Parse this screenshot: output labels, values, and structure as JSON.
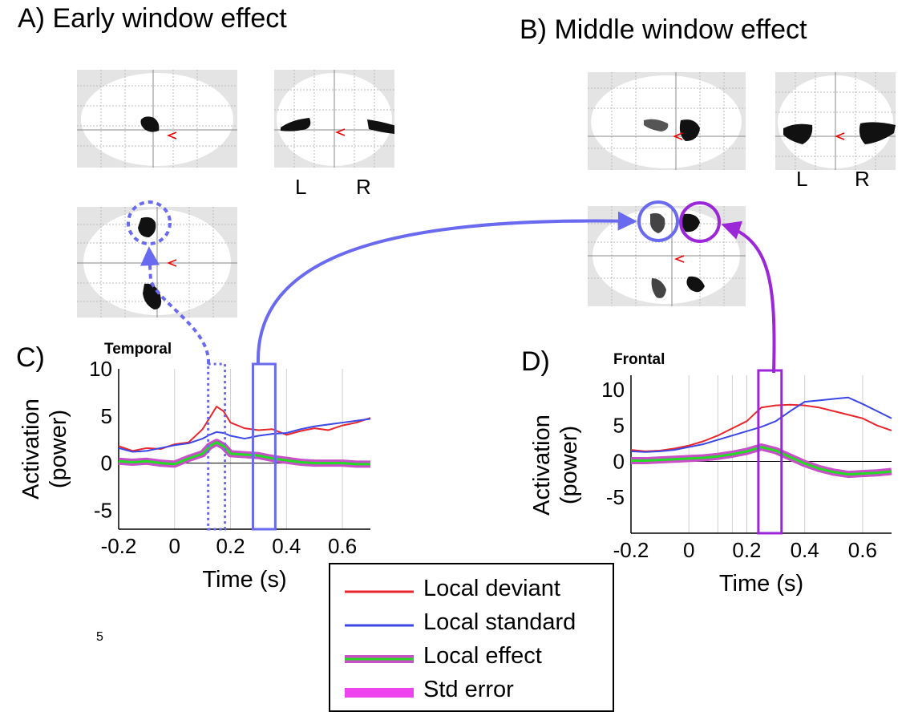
{
  "panel_a": {
    "title": "A)  Early window effect",
    "left_label": "L",
    "right_label": "R"
  },
  "panel_b": {
    "title": "B)   Middle window effect",
    "left_label": "L",
    "right_label": "R"
  },
  "panel_c": {
    "letter": "C)",
    "region": "Temporal"
  },
  "panel_d": {
    "letter": "D)",
    "region": "Frontal"
  },
  "legend": {
    "items": [
      {
        "label": "Local deviant",
        "color": "#e8262b"
      },
      {
        "label": "Local standard",
        "color": "#3a46e8"
      },
      {
        "label": "Local effect",
        "color": "#22dd22"
      },
      {
        "label": "Std error",
        "color": "#ee44ee"
      }
    ]
  },
  "footnote": "5",
  "colors": {
    "blue_highlight": "#6a6af0",
    "purple_highlight": "#9b27d9",
    "deviant": "#e8262b",
    "standard": "#3a46e8",
    "effect": "#22dd22",
    "stderr": "#c84fc8"
  },
  "chart_data": [
    {
      "type": "line",
      "title": "Temporal",
      "xlabel": "Time (s)",
      "ylabel": "Activation (power)",
      "xlim": [
        -0.2,
        0.7
      ],
      "ylim": [
        -7,
        10
      ],
      "x_ticks": [
        "-0.2",
        "0",
        "0.2",
        "0.4",
        "0.6"
      ],
      "y_ticks": [
        "10",
        "5",
        "0",
        "-5"
      ],
      "x": [
        -0.2,
        -0.15,
        -0.1,
        -0.05,
        0,
        0.05,
        0.1,
        0.125,
        0.15,
        0.175,
        0.2,
        0.25,
        0.3,
        0.35,
        0.4,
        0.45,
        0.5,
        0.55,
        0.6,
        0.65,
        0.7
      ],
      "series": [
        {
          "name": "Local deviant",
          "values": [
            1.8,
            1.3,
            1.6,
            1.5,
            2.0,
            2.2,
            3.6,
            4.8,
            6.0,
            5.5,
            4.3,
            3.7,
            3.5,
            3.6,
            3.0,
            3.4,
            3.7,
            3.5,
            4.0,
            4.3,
            4.8
          ]
        },
        {
          "name": "Local standard",
          "values": [
            1.6,
            1.2,
            1.3,
            1.6,
            1.9,
            2.1,
            2.6,
            3.0,
            3.3,
            3.2,
            2.9,
            2.6,
            2.9,
            3.1,
            3.2,
            3.6,
            3.9,
            4.1,
            4.3,
            4.5,
            4.7
          ]
        },
        {
          "name": "Local effect",
          "values": [
            0.2,
            0.1,
            0.2,
            0.0,
            -0.1,
            0.5,
            1.0,
            1.8,
            2.2,
            1.8,
            1.0,
            0.9,
            0.8,
            0.5,
            0.3,
            0.1,
            0.0,
            0.0,
            0.0,
            -0.1,
            -0.1
          ]
        }
      ],
      "highlights": [
        {
          "from": 0.12,
          "to": 0.18,
          "style": "dotted"
        },
        {
          "from": 0.28,
          "to": 0.36,
          "style": "solid"
        }
      ]
    },
    {
      "type": "line",
      "title": "Frontal",
      "xlabel": "Time (s)",
      "ylabel": "Activation (power)",
      "xlim": [
        -0.2,
        0.7
      ],
      "ylim": [
        -10,
        12
      ],
      "x_ticks": [
        "-0.2",
        "0",
        "0.2",
        "0.4",
        "0.6"
      ],
      "y_ticks": [
        "10",
        "5",
        "0",
        "-5"
      ],
      "x": [
        -0.2,
        -0.15,
        -0.1,
        -0.05,
        0,
        0.05,
        0.1,
        0.15,
        0.2,
        0.25,
        0.3,
        0.35,
        0.4,
        0.45,
        0.5,
        0.55,
        0.6,
        0.65,
        0.7
      ],
      "series": [
        {
          "name": "Local deviant",
          "values": [
            1.6,
            1.4,
            1.5,
            1.8,
            2.2,
            2.8,
            3.6,
            4.6,
            5.6,
            7.5,
            7.8,
            7.9,
            7.8,
            7.5,
            7.0,
            6.5,
            6.0,
            5.0,
            4.3
          ]
        },
        {
          "name": "Local standard",
          "values": [
            1.4,
            1.3,
            1.4,
            1.6,
            2.0,
            2.4,
            3.0,
            3.6,
            4.2,
            4.8,
            5.6,
            7.0,
            8.3,
            8.5,
            8.7,
            8.9,
            8.0,
            7.0,
            6.0
          ]
        },
        {
          "name": "Local effect",
          "values": [
            0.1,
            0.1,
            0.2,
            0.3,
            0.4,
            0.5,
            0.7,
            1.0,
            1.4,
            2.0,
            1.5,
            0.6,
            -0.3,
            -1.0,
            -1.5,
            -1.8,
            -1.7,
            -1.6,
            -1.4
          ]
        }
      ],
      "highlights": [
        {
          "from": 0.24,
          "to": 0.32,
          "style": "solid"
        }
      ]
    }
  ]
}
